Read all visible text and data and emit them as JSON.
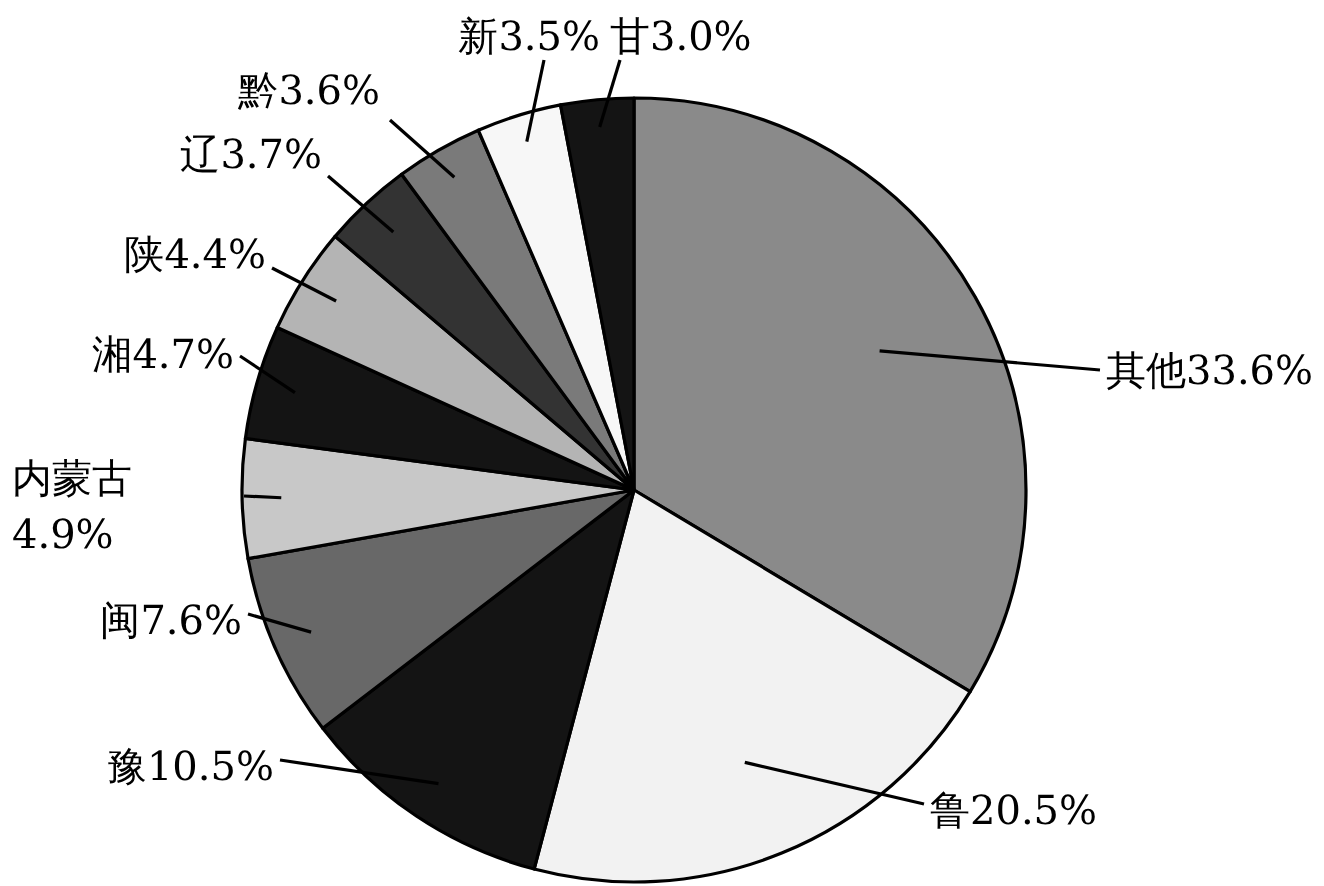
{
  "chart_data": {
    "type": "pie",
    "categories": [
      "其他",
      "鲁",
      "豫",
      "闽",
      "内蒙古",
      "湘",
      "陕",
      "辽",
      "黔",
      "新",
      "甘"
    ],
    "values": [
      33.6,
      20.5,
      10.5,
      7.6,
      4.9,
      4.7,
      4.4,
      3.7,
      3.6,
      3.5,
      3.0
    ],
    "value_labels": [
      "33.6%",
      "20.5%",
      "10.5%",
      "7.6%",
      "4.9%",
      "4.7%",
      "4.4%",
      "3.7%",
      "3.6%",
      "3.5%",
      "3.0%"
    ],
    "colors": [
      "#8a8a8a",
      "#f2f2f2",
      "#141414",
      "#686868",
      "#c8c8c8",
      "#141414",
      "#b4b4b4",
      "#333333",
      "#7a7a7a",
      "#f7f7f7",
      "#141414"
    ]
  }
}
